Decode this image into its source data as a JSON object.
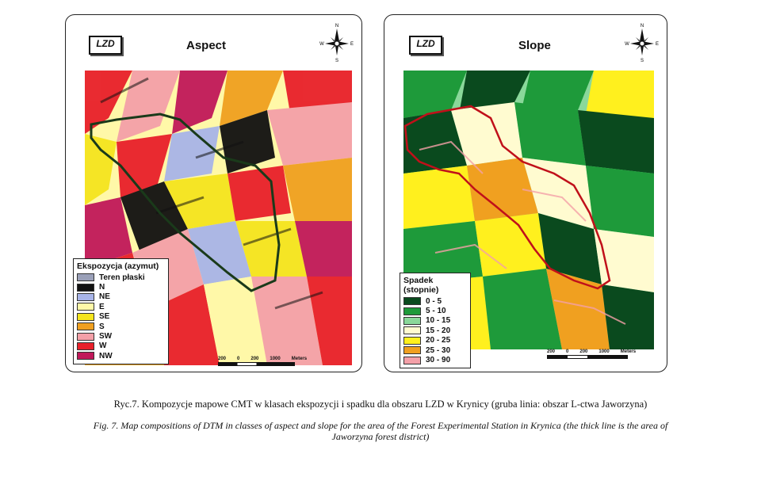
{
  "aspect_panel": {
    "logo": "LZD",
    "title": "Aspect",
    "compass": {
      "n": "N",
      "s": "S",
      "e": "E",
      "w": "W"
    },
    "legend_title": "Ekspozycja (azymut)",
    "legend": [
      {
        "label": "Teren płaski",
        "color": "#9aa0b8"
      },
      {
        "label": "N",
        "color": "#111111"
      },
      {
        "label": "NE",
        "color": "#a8b4e8"
      },
      {
        "label": "E",
        "color": "#fff8a8"
      },
      {
        "label": "SE",
        "color": "#f5e51e"
      },
      {
        "label": "S",
        "color": "#f0a020"
      },
      {
        "label": "SW",
        "color": "#f4a0a8"
      },
      {
        "label": "W",
        "color": "#e8202a"
      },
      {
        "label": "NW",
        "color": "#c0185a"
      }
    ],
    "scale_labels": [
      "200",
      "0",
      "200",
      "1000",
      "Meters"
    ]
  },
  "slope_panel": {
    "logo": "LZD",
    "title": "Slope",
    "compass": {
      "n": "N",
      "s": "S",
      "e": "E",
      "w": "W"
    },
    "legend_title": "Spadek (stopnie)",
    "legend": [
      {
        "label": "0 - 5",
        "color": "#0a4a1e"
      },
      {
        "label": "5 - 10",
        "color": "#1e9a3a"
      },
      {
        "label": "10 - 15",
        "color": "#8ad89a"
      },
      {
        "label": "15 - 20",
        "color": "#fffbd0"
      },
      {
        "label": "20 - 25",
        "color": "#fff01e"
      },
      {
        "label": "25 - 30",
        "color": "#f0a020"
      },
      {
        "label": "30 - 90",
        "color": "#f4a0a8"
      }
    ],
    "scale_labels": [
      "200",
      "0",
      "200",
      "1000",
      "Meters"
    ]
  },
  "caption_pl": "Ryc.7. Kompozycje mapowe CMT w klasach ekspozycji i spadku dla obszaru LZD w Krynicy (gruba linia: obszar L-ctwa Jaworzyna)",
  "caption_en": "Fig. 7. Map compositions of DTM in classes of aspect and slope for the area of the Forest Experimental Station in Krynica (the thick line is the area of Jaworzyna forest district)",
  "colors": {
    "boundary_aspect": "#1a3a1a",
    "boundary_slope": "#c0101a"
  }
}
